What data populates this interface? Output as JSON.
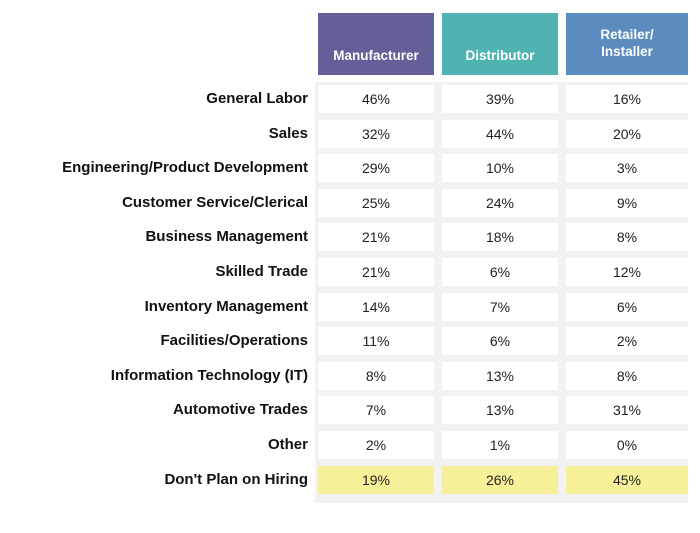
{
  "columns": [
    {
      "label": "Manufacturer",
      "color": "#645e99"
    },
    {
      "label": "Distributor",
      "color": "#4fb3b2"
    },
    {
      "label": "Retailer/ Installer",
      "color": "#5b8cbf"
    }
  ],
  "highlight": {
    "row": "Don't Plan on Hiring",
    "color": "#f6f098"
  },
  "chart_data": {
    "type": "table",
    "categories": [
      "General Labor",
      "Sales",
      "Engineering/Product Development",
      "Customer Service/Clerical",
      "Business Management",
      "Skilled Trade",
      "Inventory Management",
      "Facilities/Operations",
      "Information Technology (IT)",
      "Automotive Trades",
      "Other",
      "Don't Plan on Hiring"
    ],
    "series": [
      {
        "name": "Manufacturer",
        "values": [
          "46%",
          "32%",
          "29%",
          "25%",
          "21%",
          "21%",
          "14%",
          "11%",
          "8%",
          "7%",
          "2%",
          "19%"
        ]
      },
      {
        "name": "Distributor",
        "values": [
          "39%",
          "44%",
          "10%",
          "24%",
          "18%",
          "6%",
          "7%",
          "6%",
          "13%",
          "13%",
          "1%",
          "26%"
        ]
      },
      {
        "name": "Retailer/Installer",
        "values": [
          "16%",
          "20%",
          "3%",
          "9%",
          "8%",
          "12%",
          "6%",
          "2%",
          "8%",
          "31%",
          "0%",
          "45%"
        ]
      }
    ],
    "highlighted_row": "Don't Plan on Hiring",
    "legend_position": "none",
    "grid": false
  }
}
